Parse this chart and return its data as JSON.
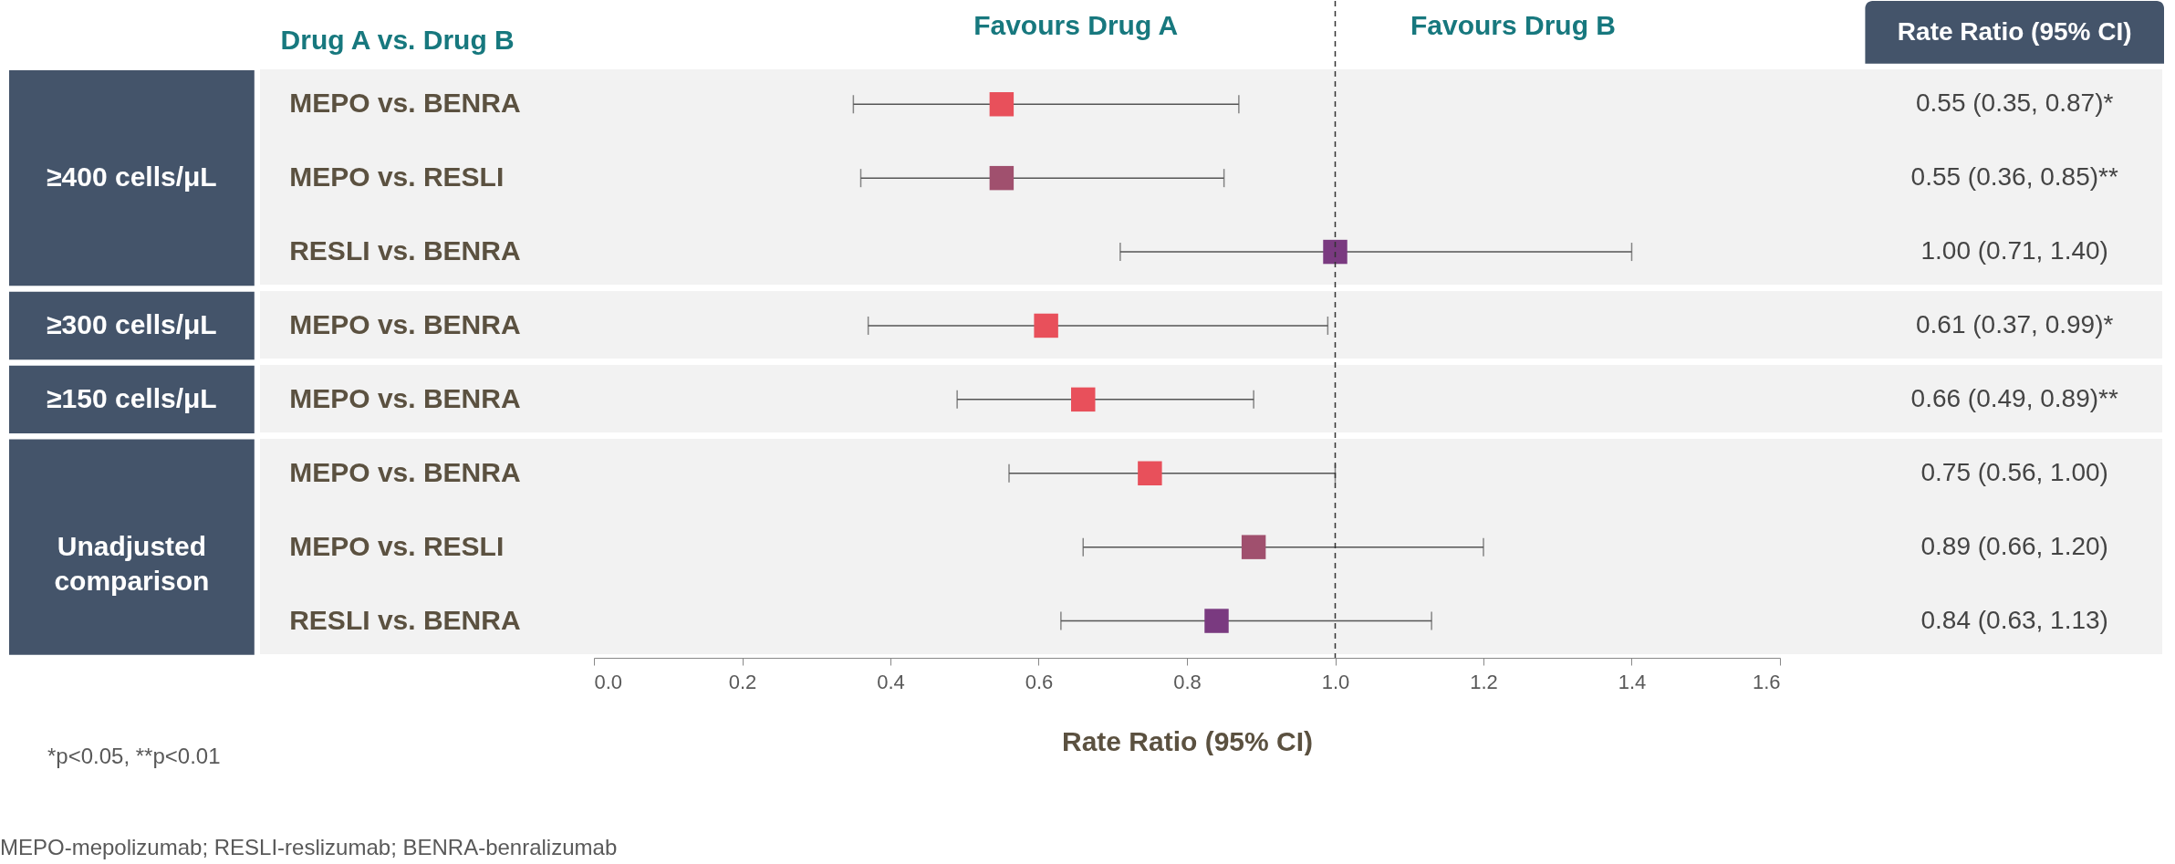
{
  "chart_data": {
    "type": "scatter",
    "orientation": "horizontal",
    "marker": "square",
    "categories": [
      "MEPO vs. BENRA",
      "MEPO vs. RESLI",
      "RESLI vs. BENRA",
      "MEPO vs. BENRA",
      "MEPO vs. BENRA",
      "MEPO vs. BENRA",
      "MEPO vs. RESLI",
      "RESLI vs. BENRA"
    ],
    "series": [
      {
        "colors": [
          "#e8505b",
          "#a0506e",
          "#7a3a80",
          null,
          null,
          null,
          null,
          null
        ],
        "values": [
          0.55,
          0.55,
          1.0,
          null,
          null,
          null,
          null,
          null
        ],
        "errors": [
          [
            0.35,
            0.87
          ],
          [
            0.36,
            0.85
          ],
          [
            0.71,
            1.4
          ],
          null,
          null,
          null,
          null,
          null
        ]
      },
      {
        "colors": [
          null,
          null,
          null,
          "#e8505b",
          null,
          null,
          null,
          null
        ],
        "values": [
          null,
          null,
          null,
          0.61,
          null,
          null,
          null,
          null
        ],
        "errors": [
          null,
          null,
          null,
          [
            0.37,
            0.99
          ],
          null,
          null,
          null,
          null
        ]
      },
      {
        "colors": [
          null,
          null,
          null,
          null,
          "#e8505b",
          null,
          null,
          null
        ],
        "values": [
          null,
          null,
          null,
          null,
          0.66,
          null,
          null,
          null
        ],
        "errors": [
          null,
          null,
          null,
          null,
          [
            0.49,
            0.89
          ],
          null,
          null,
          null
        ]
      },
      {
        "colors": [
          null,
          null,
          null,
          null,
          null,
          "#e8505b",
          "#a0506e",
          "#7a3a80"
        ],
        "values": [
          null,
          null,
          null,
          null,
          null,
          0.75,
          0.89,
          0.84
        ],
        "errors": [
          null,
          null,
          null,
          null,
          null,
          [
            0.56,
            1.0
          ],
          [
            0.66,
            1.2
          ],
          [
            0.63,
            1.13
          ]
        ]
      }
    ],
    "xlim": [
      0,
      1.6
    ],
    "xticks": [
      {
        "value": 0,
        "label": "0.0"
      },
      0.2,
      0.4,
      0.6,
      0.8,
      {
        "value": 1,
        "label": "1.0"
      },
      1.2,
      1.4,
      1.6
    ],
    "xlabel": "Rate Ratio (95% CI)",
    "grid": false,
    "ref_lines": [
      {
        "axis": "x",
        "value": 1,
        "line_style": "dashed"
      }
    ],
    "annotations": [
      "Drug A vs. Drug B",
      "Favours Drug A",
      "Favours Drug B",
      "Rate Ratio (95% CI)",
      "*p<0.05, **p<0.01",
      "MEPO-mepolizumab; RESLI-reslizumab; BENRA-benralizumab",
      "≥400 cells/μL",
      "≥300 cells/μL",
      "≥150 cells/μL",
      "Unadjusted comparison",
      "0.55 (0.35, 0.87)*",
      "0.55 (0.36, 0.85)**",
      "1.00 (0.71, 1.40)",
      "0.61 (0.37, 0.99)*",
      "0.66 (0.49, 0.89)**",
      "0.75 (0.56, 1.00)",
      "0.89 (0.66, 1.20)",
      "0.84 (0.63, 1.13)"
    ]
  }
}
